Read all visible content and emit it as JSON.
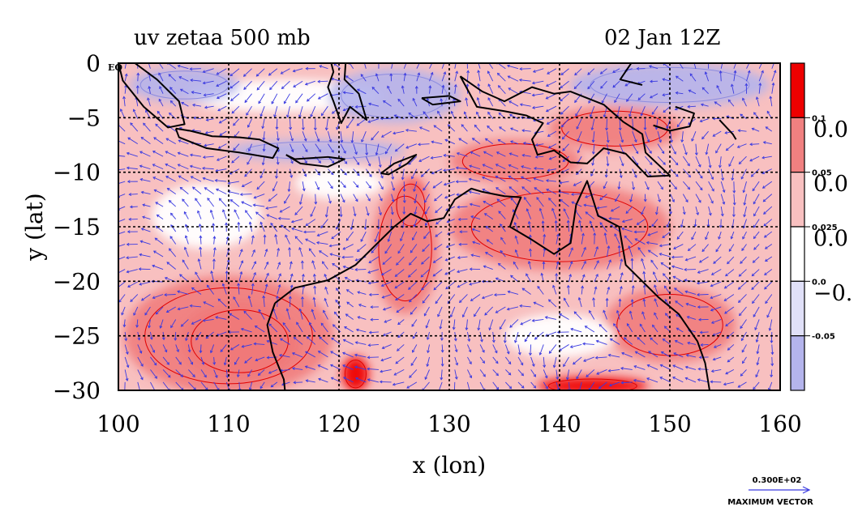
{
  "chart_data": {
    "type": "heatmap",
    "title_left": "uv zetaa 500 mb",
    "title_right": "02 Jan 12Z",
    "xlabel": "x (lon)",
    "ylabel": "y (lat)",
    "xlim": [
      100,
      160
    ],
    "ylim": [
      -30,
      0
    ],
    "x_ticks": [
      "100",
      "110",
      "120",
      "130",
      "140",
      "150",
      "160"
    ],
    "y_ticks": [
      "0",
      "−5",
      "−10",
      "−15",
      "−20",
      "−25",
      "−30"
    ],
    "equator_label": "EQ",
    "grid": true,
    "colorbar": {
      "colors": [
        "#ee0000",
        "#f08080",
        "#f8c0c0",
        "#ffffff",
        "#e0e0f8",
        "#b4b4ec"
      ],
      "tick_labels": [
        "0.1",
        "0.05",
        "0.025",
        "0.0",
        "-0.05"
      ],
      "big_labels": [
        "0.0",
        "0.0",
        "0.0",
        "−0."
      ]
    },
    "vector_legend": {
      "value": "0.300E+02",
      "label": "MAXIMUM VECTOR"
    },
    "field_regions": [
      {
        "level": "strong",
        "lon": 111,
        "lat": -25.5,
        "r_lon": 5.5,
        "r_lat": 3.6
      },
      {
        "level": "strong",
        "lon": 121.5,
        "lat": -28.5,
        "r_lon": 1.2,
        "r_lat": 1.6
      },
      {
        "level": "strong",
        "lon": 126.5,
        "lat": -13,
        "r_lon": 1.6,
        "r_lat": 2.4
      },
      {
        "level": "strong",
        "lon": 143,
        "lat": -29.6,
        "r_lon": 5,
        "r_lat": 0.8
      },
      {
        "level": "medium",
        "lon": 110,
        "lat": -25,
        "r_lon": 9.5,
        "r_lat": 5.5
      },
      {
        "level": "medium",
        "lon": 126,
        "lat": -17,
        "r_lon": 3,
        "r_lat": 6
      },
      {
        "level": "medium",
        "lon": 140,
        "lat": -15,
        "r_lon": 10,
        "r_lat": 4
      },
      {
        "level": "medium",
        "lon": 145,
        "lat": -6,
        "r_lon": 6,
        "r_lat": 2
      },
      {
        "level": "medium",
        "lon": 150,
        "lat": -24,
        "r_lon": 6,
        "r_lat": 3.5
      },
      {
        "level": "medium",
        "lon": 136,
        "lat": -9,
        "r_lon": 6,
        "r_lat": 2
      },
      {
        "level": "white",
        "lon": 108,
        "lat": -14,
        "r_lon": 5,
        "r_lat": 3
      },
      {
        "level": "white",
        "lon": 140,
        "lat": -25,
        "r_lon": 5,
        "r_lat": 2
      },
      {
        "level": "white",
        "lon": 120,
        "lat": -11,
        "r_lon": 4,
        "r_lat": 1.5
      },
      {
        "level": "white",
        "lon": 115,
        "lat": -3,
        "r_lon": 9,
        "r_lat": 1.5
      },
      {
        "level": "negative",
        "lon": 106,
        "lat": -2,
        "r_lon": 5,
        "r_lat": 1.6
      },
      {
        "level": "negative",
        "lon": 125,
        "lat": -3,
        "r_lon": 6,
        "r_lat": 2.5
      },
      {
        "level": "negative",
        "lon": 150,
        "lat": -2,
        "r_lon": 9,
        "r_lat": 2
      },
      {
        "level": "negative",
        "lon": 118,
        "lat": -8,
        "r_lon": 8,
        "r_lat": 1
      }
    ],
    "coastline_points": [
      [
        [
          114.2,
          -22
        ],
        [
          113.5,
          -24
        ],
        [
          114,
          -26.5
        ],
        [
          115,
          -29
        ],
        [
          115.1,
          -30
        ]
      ],
      [
        [
          114.2,
          -22
        ],
        [
          116,
          -20.6
        ],
        [
          119,
          -19.9
        ],
        [
          121.5,
          -18.5
        ],
        [
          123,
          -17
        ],
        [
          125,
          -15
        ],
        [
          126.5,
          -13.8
        ],
        [
          128,
          -14.5
        ],
        [
          129.5,
          -14.2
        ],
        [
          130.5,
          -12.5
        ],
        [
          132,
          -11.5
        ],
        [
          133,
          -11.8
        ],
        [
          135,
          -12.2
        ],
        [
          136.5,
          -12.3
        ],
        [
          136,
          -13.5
        ],
        [
          135.5,
          -15
        ],
        [
          137.5,
          -16.2
        ],
        [
          139.5,
          -17.5
        ],
        [
          141,
          -16.5
        ],
        [
          141.5,
          -13
        ],
        [
          142.5,
          -10.8
        ],
        [
          143.5,
          -14
        ],
        [
          145.4,
          -15
        ],
        [
          146,
          -18.5
        ],
        [
          149,
          -21.5
        ],
        [
          150.8,
          -23
        ],
        [
          152.5,
          -25.5
        ],
        [
          153.2,
          -27.5
        ],
        [
          153.6,
          -30
        ]
      ],
      [
        [
          105.2,
          -6
        ],
        [
          106.5,
          -6.2
        ],
        [
          108.5,
          -6.7
        ],
        [
          111,
          -6.8
        ],
        [
          112.8,
          -7
        ],
        [
          114.5,
          -7.8
        ],
        [
          114,
          -8.7
        ],
        [
          111,
          -8.2
        ],
        [
          108,
          -7.8
        ],
        [
          105.5,
          -6.8
        ],
        [
          105.2,
          -6
        ]
      ],
      [
        [
          115.2,
          -8.4
        ],
        [
          116,
          -8.8
        ],
        [
          119,
          -8.6
        ],
        [
          120.5,
          -8.8
        ],
        [
          119,
          -9.5
        ],
        [
          116.5,
          -9.2
        ],
        [
          115.2,
          -8.4
        ]
      ],
      [
        [
          123.8,
          -10.1
        ],
        [
          125,
          -9.2
        ],
        [
          127,
          -8.4
        ],
        [
          126.2,
          -9.2
        ],
        [
          124.5,
          -10.2
        ],
        [
          123.8,
          -10.1
        ]
      ],
      [
        [
          120.6,
          0
        ],
        [
          120.5,
          -1.5
        ],
        [
          121.8,
          -2.8
        ],
        [
          122.5,
          -5.2
        ],
        [
          121,
          -4
        ],
        [
          120.2,
          -5.5
        ],
        [
          119.5,
          -3.5
        ],
        [
          119,
          -2.2
        ],
        [
          119.5,
          -0.8
        ],
        [
          119.3,
          0
        ]
      ],
      [
        [
          131,
          -1.2
        ],
        [
          133,
          -2.6
        ],
        [
          135,
          -3.5
        ],
        [
          137.5,
          -2.2
        ],
        [
          139.5,
          -2.8
        ],
        [
          141,
          -2.6
        ],
        [
          144,
          -3.8
        ],
        [
          145.8,
          -5.4
        ],
        [
          147.5,
          -6.5
        ],
        [
          147.8,
          -8.2
        ],
        [
          150,
          -10.3
        ],
        [
          148,
          -10.4
        ],
        [
          146,
          -8.3
        ],
        [
          144,
          -7.8
        ],
        [
          142.5,
          -9.2
        ],
        [
          141,
          -9.1
        ],
        [
          139.5,
          -8
        ],
        [
          138,
          -8.4
        ],
        [
          137.5,
          -7
        ],
        [
          138.5,
          -5.5
        ],
        [
          137,
          -4.8
        ],
        [
          135,
          -4.4
        ],
        [
          132.5,
          -4
        ],
        [
          131,
          -1.2
        ]
      ],
      [
        [
          127.5,
          -3.2
        ],
        [
          130,
          -3
        ],
        [
          131,
          -3.5
        ],
        [
          128.5,
          -3.8
        ],
        [
          127.5,
          -3.2
        ]
      ],
      [
        [
          146.5,
          0
        ],
        [
          145.5,
          -1.5
        ],
        [
          147.5,
          -2
        ]
      ],
      [
        [
          150.5,
          -4
        ],
        [
          152.2,
          -4.6
        ],
        [
          151.8,
          -5.8
        ],
        [
          150,
          -6.2
        ],
        [
          148.5,
          -5.7
        ]
      ],
      [
        [
          154.5,
          -5.2
        ],
        [
          155.7,
          -6.5
        ],
        [
          156,
          -7
        ]
      ],
      [
        [
          101.5,
          0
        ],
        [
          103.5,
          -1.5
        ],
        [
          105.5,
          -3.5
        ],
        [
          106,
          -5.6
        ],
        [
          104.5,
          -5.9
        ],
        [
          102.3,
          -4
        ],
        [
          100.4,
          -1.6
        ],
        [
          100,
          0
        ]
      ]
    ]
  }
}
